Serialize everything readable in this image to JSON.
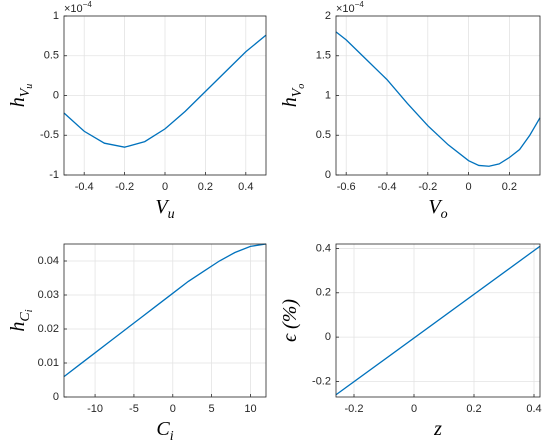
{
  "chart_data": [
    {
      "type": "line",
      "xlabel": [
        "V",
        "u"
      ],
      "ylabel": [
        "h",
        "V",
        "u"
      ],
      "y_multiplier": [
        "×10",
        "−4"
      ],
      "x": [
        -0.5,
        -0.4,
        -0.3,
        -0.2,
        -0.1,
        0,
        0.1,
        0.2,
        0.3,
        0.4,
        0.5
      ],
      "values": [
        -0.22,
        -0.45,
        -0.6,
        -0.65,
        -0.58,
        -0.42,
        -0.2,
        0.05,
        0.3,
        0.55,
        0.76
      ],
      "color": "#0072bd",
      "grid": true,
      "xlim": [
        -0.5,
        0.5
      ],
      "xticks": [
        -0.4,
        -0.2,
        0,
        0.2,
        0.4
      ],
      "ylim": [
        -1,
        1
      ],
      "yticks": [
        -1,
        -0.5,
        0,
        0.5,
        1
      ]
    },
    {
      "type": "line",
      "xlabel": [
        "V",
        "o"
      ],
      "ylabel": [
        "h",
        "V",
        "o"
      ],
      "y_multiplier": [
        "×10",
        "−4"
      ],
      "x": [
        -0.65,
        -0.6,
        -0.5,
        -0.4,
        -0.3,
        -0.2,
        -0.1,
        0,
        0.05,
        0.1,
        0.15,
        0.2,
        0.25,
        0.3,
        0.35
      ],
      "values": [
        1.8,
        1.7,
        1.45,
        1.2,
        0.9,
        0.62,
        0.38,
        0.18,
        0.12,
        0.11,
        0.14,
        0.22,
        0.32,
        0.5,
        0.72
      ],
      "color": "#0072bd",
      "grid": true,
      "xlim": [
        -0.65,
        0.35
      ],
      "xticks": [
        -0.6,
        -0.4,
        -0.2,
        0,
        0.2
      ],
      "ylim": [
        0,
        2
      ],
      "yticks": [
        0,
        0.5,
        1,
        1.5,
        2
      ]
    },
    {
      "type": "line",
      "xlabel": [
        "C",
        "i"
      ],
      "ylabel": [
        "h",
        "C",
        "i"
      ],
      "x": [
        -14,
        -12,
        -10,
        -8,
        -6,
        -4,
        -2,
        0,
        2,
        4,
        6,
        8,
        10,
        12
      ],
      "values": [
        0.006,
        0.0095,
        0.013,
        0.0165,
        0.02,
        0.0235,
        0.027,
        0.0305,
        0.034,
        0.037,
        0.04,
        0.0425,
        0.0443,
        0.045
      ],
      "color": "#0072bd",
      "grid": true,
      "xlim": [
        -14,
        12
      ],
      "xticks": [
        -10,
        -5,
        0,
        5,
        10
      ],
      "ylim": [
        0,
        0.045
      ],
      "yticks": [
        0,
        0.01,
        0.02,
        0.03,
        0.04
      ]
    },
    {
      "type": "line",
      "xlabel": [
        "z"
      ],
      "ylabel": [
        "ϵ (%)"
      ],
      "x": [
        -0.26,
        0.42
      ],
      "values": [
        -0.26,
        0.41
      ],
      "color": "#0072bd",
      "grid": true,
      "xlim": [
        -0.26,
        0.42
      ],
      "xticks": [
        -0.2,
        0,
        0.2,
        0.4
      ],
      "ylim": [
        -0.27,
        0.42
      ],
      "yticks": [
        -0.2,
        0,
        0.2,
        0.4
      ]
    }
  ]
}
